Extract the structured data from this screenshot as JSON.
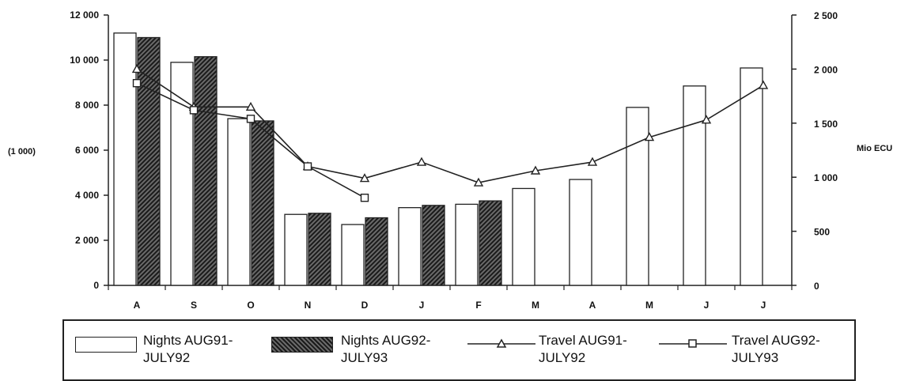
{
  "chart_data": {
    "type": "bar",
    "categories": [
      "A",
      "S",
      "O",
      "N",
      "D",
      "J",
      "F",
      "M",
      "A",
      "M",
      "J",
      "J"
    ],
    "left_axis": {
      "label": "(1 000)",
      "ylim": [
        0,
        12000
      ],
      "ticks": [
        0,
        2000,
        4000,
        6000,
        8000,
        10000,
        12000
      ],
      "tick_labels": [
        "0",
        "2 000",
        "4 000",
        "6 000",
        "8 000",
        "10 000",
        "12 000"
      ]
    },
    "right_axis": {
      "label": "Mio ECU",
      "ylim": [
        0,
        2500
      ],
      "ticks": [
        0,
        500,
        1000,
        1500,
        2000,
        2500
      ],
      "tick_labels": [
        "0",
        "500",
        "1 000",
        "1 500",
        "2 000",
        "2 500"
      ]
    },
    "series": [
      {
        "name": "Nights AUG91-JULY92",
        "kind": "bar",
        "style": "open",
        "axis": "left",
        "values": [
          11200,
          9900,
          7400,
          3150,
          2700,
          3450,
          3600,
          4300,
          4700,
          7900,
          8850,
          9650
        ]
      },
      {
        "name": "Nights AUG92-JULY93",
        "kind": "bar",
        "style": "hatched",
        "axis": "left",
        "values": [
          11000,
          10150,
          7300,
          3200,
          3000,
          3550,
          3750,
          null,
          null,
          null,
          null,
          null
        ]
      },
      {
        "name": "Travel AUG91-JULY92",
        "kind": "line",
        "marker": "triangle",
        "axis": "right",
        "values": [
          2000,
          1650,
          1650,
          1100,
          990,
          1140,
          950,
          1060,
          1140,
          1370,
          1530,
          1850
        ]
      },
      {
        "name": "Travel AUG92-JULY93",
        "kind": "line",
        "marker": "square",
        "axis": "right",
        "values": [
          1870,
          1620,
          1540,
          1100,
          810,
          null,
          null,
          null,
          null,
          null,
          null,
          null
        ]
      }
    ],
    "legend_position": "bottom",
    "grid": false
  },
  "legend": {
    "items": [
      {
        "label": "Nights AUG91-JULY92"
      },
      {
        "label": "Nights AUG92-JULY93"
      },
      {
        "label": "Travel AUG91-JULY92"
      },
      {
        "label": "Travel AUG92-JULY93"
      }
    ]
  }
}
